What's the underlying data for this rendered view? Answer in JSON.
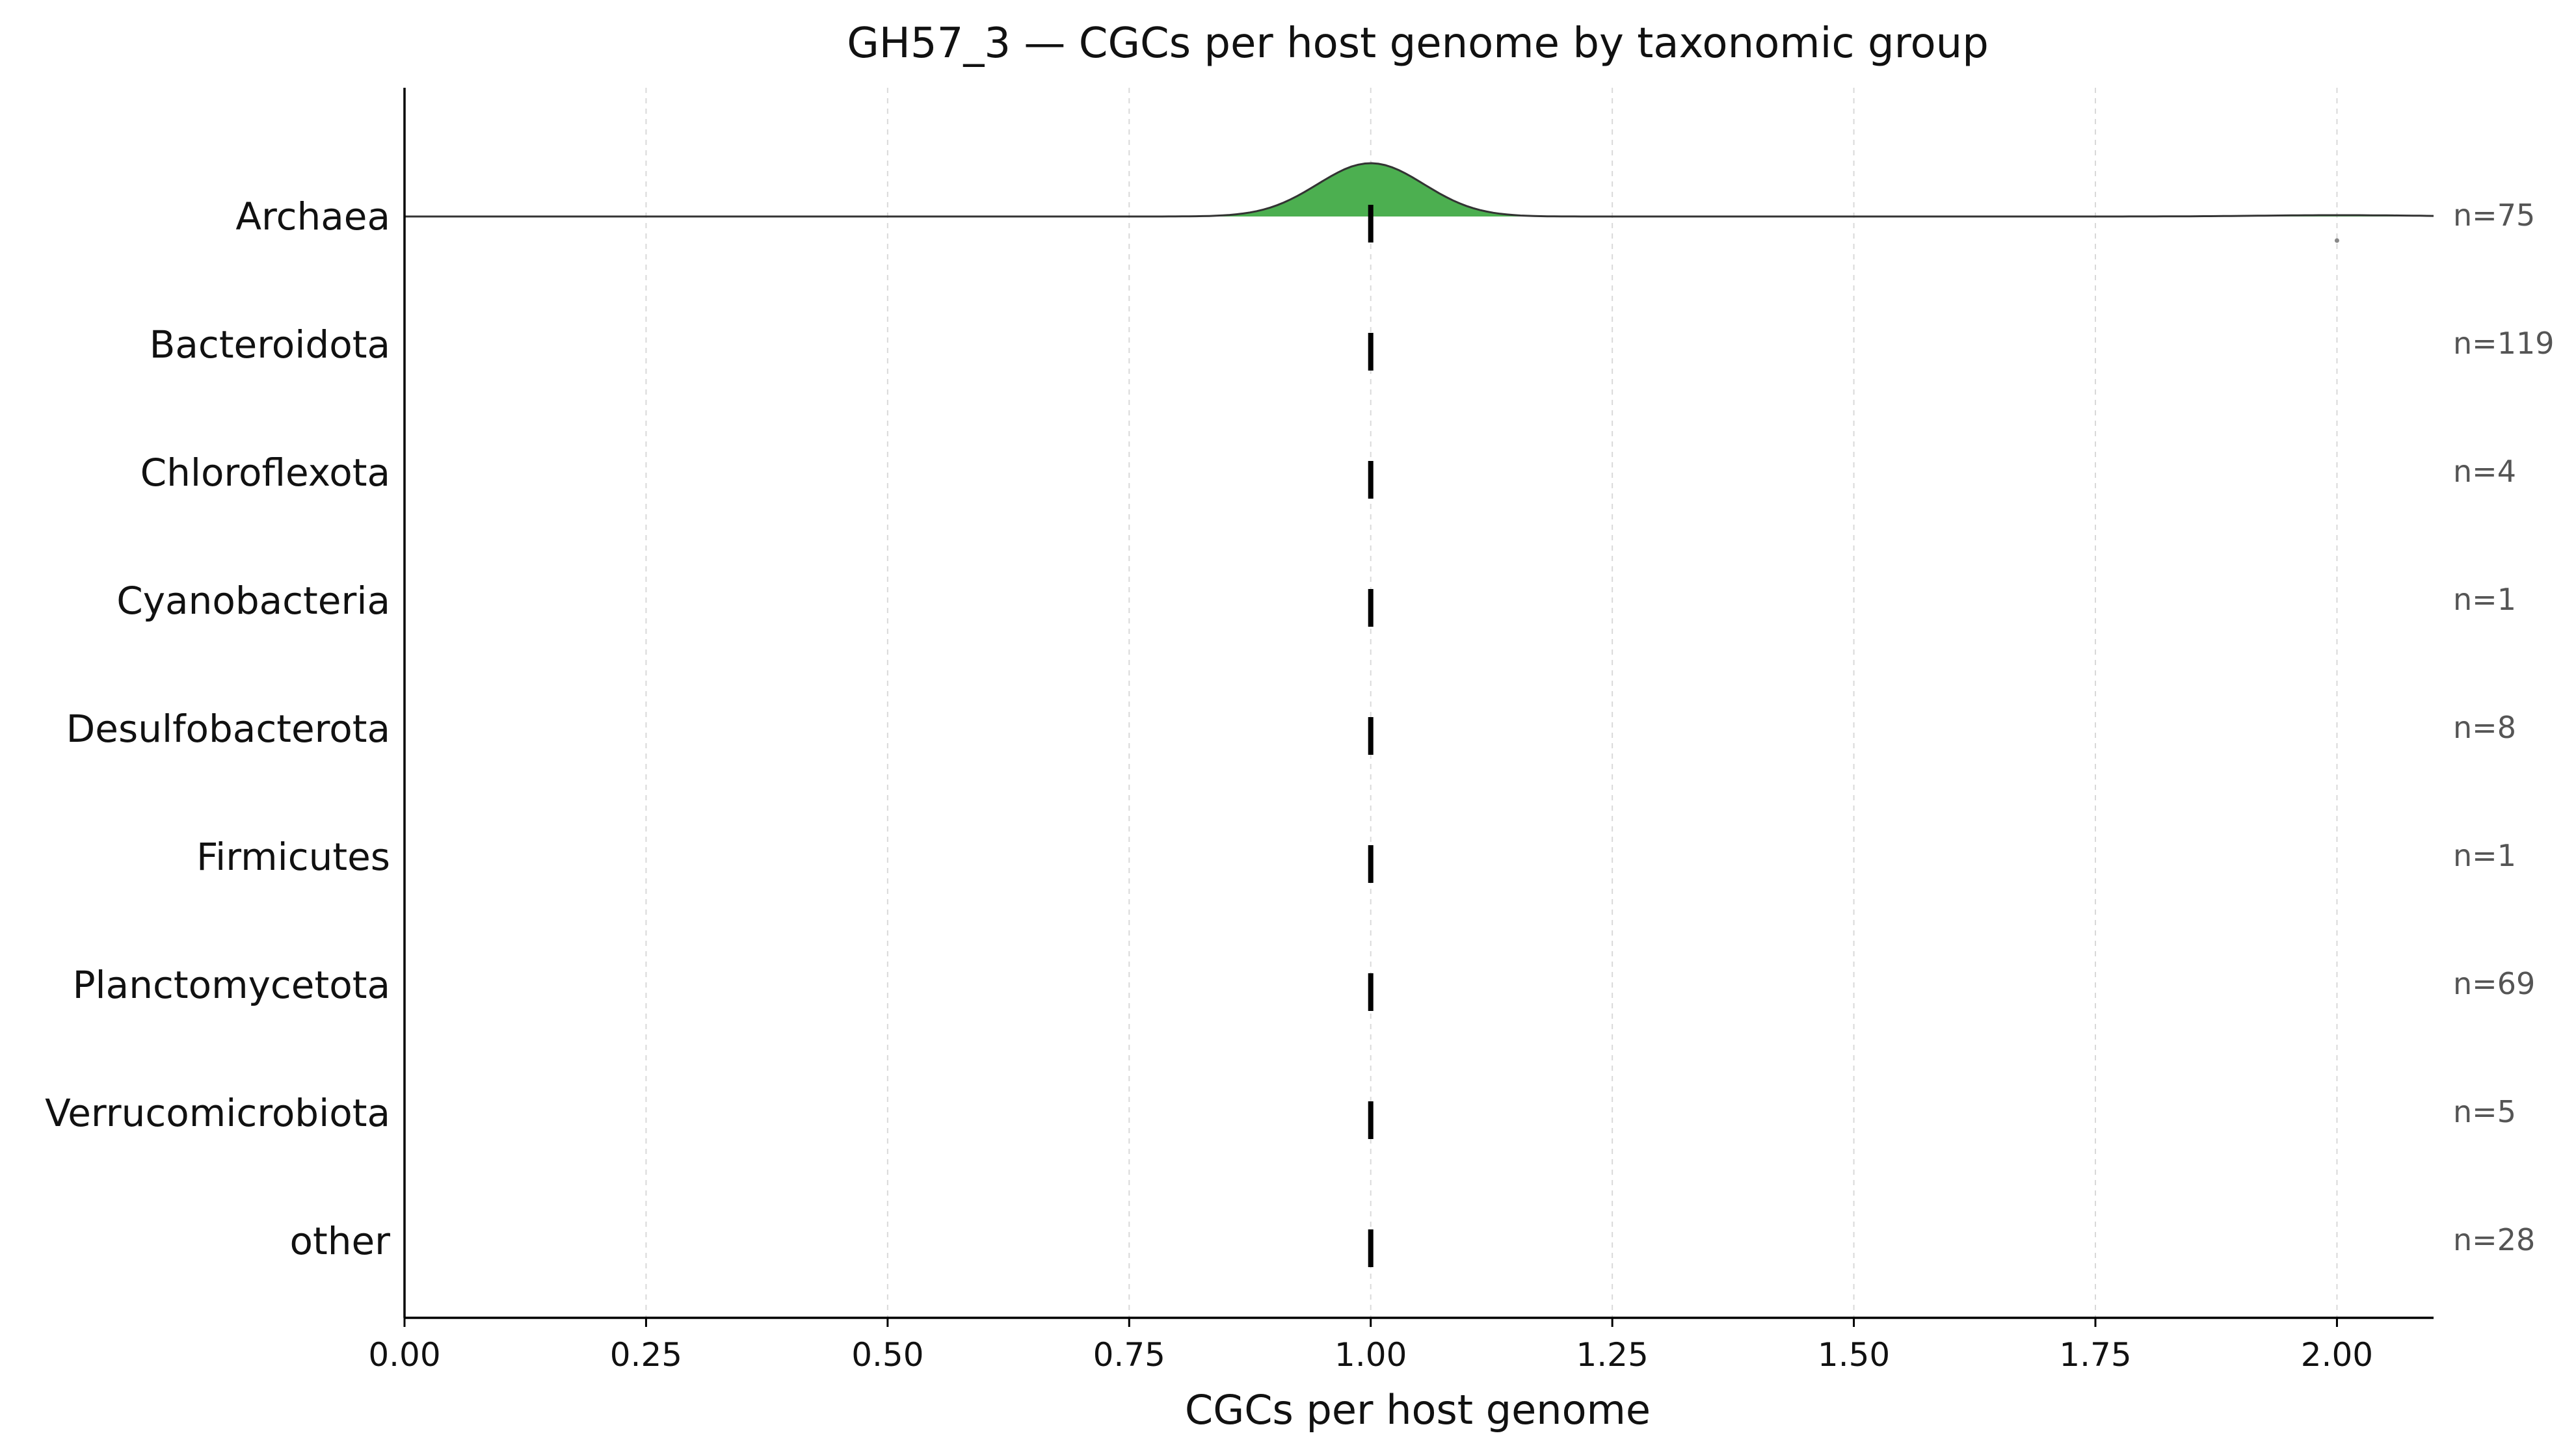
{
  "chart_data": {
    "type": "ridgeline",
    "title": "GH57_3 — CGCs per host genome by taxonomic group",
    "xlabel": "CGCs per host genome",
    "ylabel": "",
    "xlim": [
      0,
      2.1
    ],
    "x_ticks": [
      "0.00",
      "0.25",
      "0.50",
      "0.75",
      "1.00",
      "1.25",
      "1.50",
      "1.75",
      "2.00"
    ],
    "x_tick_values": [
      0,
      0.25,
      0.5,
      0.75,
      1.0,
      1.25,
      1.5,
      1.75,
      2.0
    ],
    "grid": "vertical-dashed",
    "fill_color": "#4caf50",
    "groups": [
      {
        "name": "Archaea",
        "n_label": "n=75",
        "median": 1.0,
        "density_peak_x": 1.0,
        "density_shown": true,
        "outliers": [
          2.0
        ]
      },
      {
        "name": "Bacteroidota",
        "n_label": "n=119",
        "median": 1.0,
        "density_shown": false,
        "outliers": []
      },
      {
        "name": "Chloroflexota",
        "n_label": "n=4",
        "median": 1.0,
        "density_shown": false,
        "outliers": []
      },
      {
        "name": "Cyanobacteria",
        "n_label": "n=1",
        "median": 1.0,
        "density_shown": false,
        "outliers": []
      },
      {
        "name": "Desulfobacterota",
        "n_label": "n=8",
        "median": 1.0,
        "density_shown": false,
        "outliers": []
      },
      {
        "name": "Firmicutes",
        "n_label": "n=1",
        "median": 1.0,
        "density_shown": false,
        "outliers": []
      },
      {
        "name": "Planctomycetota",
        "n_label": "n=69",
        "median": 1.0,
        "density_shown": false,
        "outliers": []
      },
      {
        "name": "Verrucomicrobiota",
        "n_label": "n=5",
        "median": 1.0,
        "density_shown": false,
        "outliers": []
      },
      {
        "name": "other",
        "n_label": "n=28",
        "median": 1.0,
        "density_shown": false,
        "outliers": []
      }
    ]
  }
}
